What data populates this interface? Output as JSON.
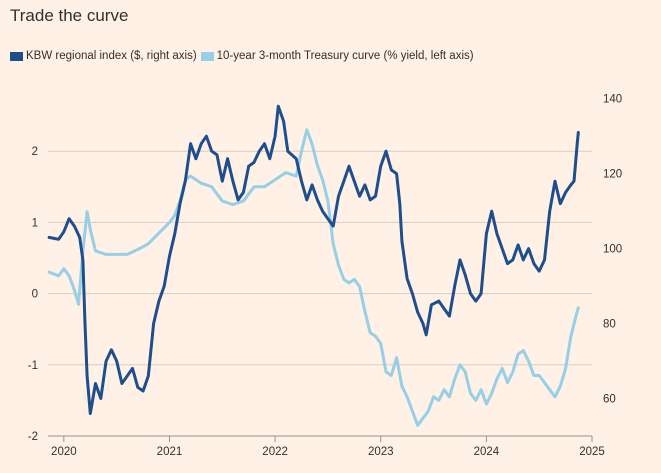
{
  "chart_data": {
    "type": "line",
    "title": "Trade the curve",
    "legend_position": "top-left",
    "grid": true,
    "x_axis": {
      "range": [
        2019.85,
        2025.0
      ],
      "ticks": [
        "2020",
        "2021",
        "2022",
        "2023",
        "2024",
        "2025"
      ],
      "tick_values": [
        2020,
        2021,
        2022,
        2023,
        2024,
        2025
      ]
    },
    "y_left": {
      "range": [
        -2,
        3.0
      ],
      "ticks": [
        "2",
        "1",
        "0",
        "-1",
        "-2"
      ],
      "tick_values": [
        2,
        1,
        0,
        -1,
        -2
      ]
    },
    "y_right": {
      "range": [
        50,
        145
      ],
      "ticks": [
        "140",
        "120",
        "100",
        "80",
        "60"
      ],
      "tick_values": [
        140,
        120,
        100,
        80,
        60
      ]
    },
    "series": [
      {
        "name": "KBW regional index ($, right axis)",
        "axis": "right",
        "color": "#1f4e8c",
        "points": [
          [
            2019.86,
            103.0
          ],
          [
            2019.95,
            102.5
          ],
          [
            2020.0,
            104.5
          ],
          [
            2020.05,
            108.0
          ],
          [
            2020.1,
            106.0
          ],
          [
            2020.15,
            103.0
          ],
          [
            2020.18,
            97.0
          ],
          [
            2020.2,
            80.0
          ],
          [
            2020.22,
            66.0
          ],
          [
            2020.25,
            56.0
          ],
          [
            2020.3,
            64.0
          ],
          [
            2020.35,
            60.0
          ],
          [
            2020.4,
            70.0
          ],
          [
            2020.45,
            73.0
          ],
          [
            2020.5,
            70.0
          ],
          [
            2020.55,
            64.0
          ],
          [
            2020.6,
            66.0
          ],
          [
            2020.65,
            68.0
          ],
          [
            2020.7,
            63.0
          ],
          [
            2020.75,
            62.0
          ],
          [
            2020.8,
            66.0
          ],
          [
            2020.85,
            80.0
          ],
          [
            2020.9,
            86.0
          ],
          [
            2020.95,
            90.0
          ],
          [
            2021.0,
            98.0
          ],
          [
            2021.05,
            104.0
          ],
          [
            2021.1,
            112.0
          ],
          [
            2021.15,
            118.0
          ],
          [
            2021.2,
            128.0
          ],
          [
            2021.25,
            124.0
          ],
          [
            2021.3,
            128.0
          ],
          [
            2021.35,
            130.0
          ],
          [
            2021.4,
            126.0
          ],
          [
            2021.45,
            125.0
          ],
          [
            2021.5,
            118.0
          ],
          [
            2021.55,
            124.0
          ],
          [
            2021.6,
            118.0
          ],
          [
            2021.65,
            113.0
          ],
          [
            2021.7,
            115.0
          ],
          [
            2021.75,
            122.0
          ],
          [
            2021.8,
            123.0
          ],
          [
            2021.85,
            126.0
          ],
          [
            2021.9,
            128.0
          ],
          [
            2021.95,
            124.0
          ],
          [
            2022.0,
            130.0
          ],
          [
            2022.03,
            138.0
          ],
          [
            2022.08,
            134.0
          ],
          [
            2022.12,
            126.0
          ],
          [
            2022.2,
            124.0
          ],
          [
            2022.25,
            118.0
          ],
          [
            2022.3,
            113.0
          ],
          [
            2022.35,
            117.0
          ],
          [
            2022.4,
            113.0
          ],
          [
            2022.45,
            110.0
          ],
          [
            2022.5,
            108.0
          ],
          [
            2022.55,
            106.0
          ],
          [
            2022.6,
            114.0
          ],
          [
            2022.65,
            118.0
          ],
          [
            2022.7,
            122.0
          ],
          [
            2022.75,
            118.0
          ],
          [
            2022.8,
            114.0
          ],
          [
            2022.85,
            117.0
          ],
          [
            2022.9,
            113.0
          ],
          [
            2022.95,
            114.0
          ],
          [
            2023.0,
            122.0
          ],
          [
            2023.05,
            126.0
          ],
          [
            2023.1,
            121.0
          ],
          [
            2023.15,
            120.0
          ],
          [
            2023.18,
            112.0
          ],
          [
            2023.2,
            102.0
          ],
          [
            2023.25,
            92.0
          ],
          [
            2023.3,
            88.0
          ],
          [
            2023.35,
            83.0
          ],
          [
            2023.4,
            80.0
          ],
          [
            2023.43,
            77.0
          ],
          [
            2023.48,
            85.0
          ],
          [
            2023.55,
            86.0
          ],
          [
            2023.6,
            84.0
          ],
          [
            2023.65,
            82.0
          ],
          [
            2023.7,
            90.0
          ],
          [
            2023.75,
            97.0
          ],
          [
            2023.8,
            93.0
          ],
          [
            2023.85,
            88.0
          ],
          [
            2023.9,
            86.0
          ],
          [
            2023.95,
            88.0
          ],
          [
            2024.0,
            104.0
          ],
          [
            2024.05,
            110.0
          ],
          [
            2024.1,
            104.0
          ],
          [
            2024.15,
            100.0
          ],
          [
            2024.2,
            96.0
          ],
          [
            2024.25,
            97.0
          ],
          [
            2024.3,
            101.0
          ],
          [
            2024.35,
            97.0
          ],
          [
            2024.4,
            100.0
          ],
          [
            2024.45,
            96.0
          ],
          [
            2024.5,
            94.0
          ],
          [
            2024.55,
            97.0
          ],
          [
            2024.6,
            110.0
          ],
          [
            2024.65,
            118.0
          ],
          [
            2024.7,
            112.0
          ],
          [
            2024.75,
            115.0
          ],
          [
            2024.8,
            117.0
          ],
          [
            2024.83,
            118.0
          ],
          [
            2024.86,
            128.0
          ],
          [
            2024.87,
            131.0
          ]
        ]
      },
      {
        "name": "10-year 3-month Treasury curve (% yield, left axis)",
        "axis": "left",
        "color": "#96cfe6",
        "points": [
          [
            2019.86,
            0.3
          ],
          [
            2019.95,
            0.25
          ],
          [
            2020.0,
            0.35
          ],
          [
            2020.05,
            0.25
          ],
          [
            2020.1,
            0.05
          ],
          [
            2020.14,
            -0.15
          ],
          [
            2020.18,
            0.6
          ],
          [
            2020.22,
            1.15
          ],
          [
            2020.25,
            0.9
          ],
          [
            2020.3,
            0.6
          ],
          [
            2020.4,
            0.55
          ],
          [
            2020.5,
            0.55
          ],
          [
            2020.6,
            0.55
          ],
          [
            2020.7,
            0.62
          ],
          [
            2020.8,
            0.7
          ],
          [
            2020.9,
            0.85
          ],
          [
            2021.0,
            1.0
          ],
          [
            2021.05,
            1.1
          ],
          [
            2021.1,
            1.3
          ],
          [
            2021.15,
            1.6
          ],
          [
            2021.2,
            1.65
          ],
          [
            2021.3,
            1.55
          ],
          [
            2021.4,
            1.5
          ],
          [
            2021.5,
            1.3
          ],
          [
            2021.6,
            1.25
          ],
          [
            2021.7,
            1.3
          ],
          [
            2021.8,
            1.5
          ],
          [
            2021.9,
            1.5
          ],
          [
            2022.0,
            1.6
          ],
          [
            2022.1,
            1.7
          ],
          [
            2022.2,
            1.65
          ],
          [
            2022.25,
            2.0
          ],
          [
            2022.3,
            2.3
          ],
          [
            2022.35,
            2.1
          ],
          [
            2022.4,
            1.8
          ],
          [
            2022.45,
            1.6
          ],
          [
            2022.5,
            1.3
          ],
          [
            2022.55,
            0.7
          ],
          [
            2022.6,
            0.4
          ],
          [
            2022.65,
            0.2
          ],
          [
            2022.7,
            0.15
          ],
          [
            2022.75,
            0.2
          ],
          [
            2022.8,
            0.1
          ],
          [
            2022.85,
            -0.25
          ],
          [
            2022.9,
            -0.55
          ],
          [
            2022.95,
            -0.6
          ],
          [
            2023.0,
            -0.7
          ],
          [
            2023.05,
            -1.1
          ],
          [
            2023.1,
            -1.15
          ],
          [
            2023.15,
            -0.9
          ],
          [
            2023.2,
            -1.3
          ],
          [
            2023.25,
            -1.45
          ],
          [
            2023.3,
            -1.65
          ],
          [
            2023.35,
            -1.85
          ],
          [
            2023.4,
            -1.75
          ],
          [
            2023.45,
            -1.65
          ],
          [
            2023.5,
            -1.45
          ],
          [
            2023.55,
            -1.5
          ],
          [
            2023.6,
            -1.35
          ],
          [
            2023.65,
            -1.45
          ],
          [
            2023.7,
            -1.2
          ],
          [
            2023.75,
            -1.0
          ],
          [
            2023.8,
            -1.1
          ],
          [
            2023.85,
            -1.4
          ],
          [
            2023.9,
            -1.5
          ],
          [
            2023.95,
            -1.35
          ],
          [
            2024.0,
            -1.55
          ],
          [
            2024.05,
            -1.4
          ],
          [
            2024.1,
            -1.2
          ],
          [
            2024.15,
            -1.05
          ],
          [
            2024.2,
            -1.25
          ],
          [
            2024.25,
            -1.1
          ],
          [
            2024.3,
            -0.85
          ],
          [
            2024.35,
            -0.8
          ],
          [
            2024.4,
            -0.95
          ],
          [
            2024.45,
            -1.15
          ],
          [
            2024.5,
            -1.15
          ],
          [
            2024.55,
            -1.25
          ],
          [
            2024.6,
            -1.35
          ],
          [
            2024.65,
            -1.45
          ],
          [
            2024.7,
            -1.3
          ],
          [
            2024.75,
            -1.05
          ],
          [
            2024.8,
            -0.6
          ],
          [
            2024.85,
            -0.3
          ],
          [
            2024.87,
            -0.2
          ]
        ]
      }
    ]
  }
}
